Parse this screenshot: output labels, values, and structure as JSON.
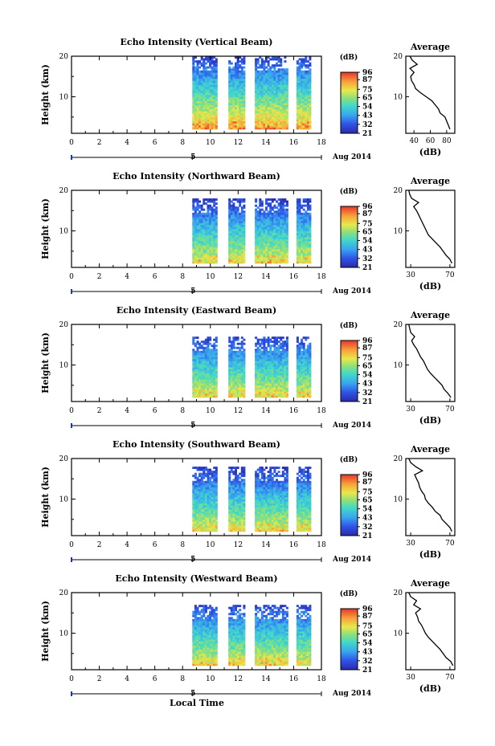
{
  "figure": {
    "xlabel": "Local Time",
    "colorbar_unit": "(dB)",
    "date_label": "Aug 2014",
    "day_tick": "5",
    "ylabel": "Height (km)",
    "avg_title": "Average",
    "avg_xlabel": "(dB)"
  },
  "chart_data": [
    {
      "type": "heatmap",
      "title": "Echo Intensity (Vertical Beam)",
      "xlabel": "Local Time",
      "ylabel": "Height (km)",
      "xlim": [
        0,
        18
      ],
      "ylim": [
        1,
        20
      ],
      "xticks": [
        "0",
        "2",
        "4",
        "6",
        "8",
        "10",
        "12",
        "14",
        "16",
        "18"
      ],
      "yticks": [
        "10",
        "20"
      ],
      "data_segments": [
        [
          8.7,
          10.5
        ],
        [
          11.3,
          12.5
        ],
        [
          13.2,
          15.5
        ],
        [
          16.2,
          17.2
        ]
      ],
      "top_height": 20,
      "colorbar": {
        "unit": "(dB)",
        "ticks": [
          "96",
          "87",
          "75",
          "65",
          "54",
          "43",
          "32",
          "21"
        ],
        "range": [
          21,
          96
        ]
      },
      "average_profile": {
        "title": "Average",
        "xlabel": "(dB)",
        "xticks": [
          "40",
          "60",
          "80"
        ],
        "xlim": [
          30,
          90
        ],
        "height": [
          2,
          3,
          4,
          5,
          6,
          7,
          8,
          9,
          10,
          11,
          12,
          13,
          14,
          15,
          16,
          17,
          18,
          19,
          20
        ],
        "value": [
          84,
          82,
          80,
          78,
          72,
          70,
          66,
          62,
          55,
          48,
          42,
          40,
          37,
          36,
          40,
          35,
          44,
          38,
          35
        ]
      }
    },
    {
      "type": "heatmap",
      "title": "Echo Intensity (Northward Beam)",
      "xlabel": "Local Time",
      "ylabel": "Height (km)",
      "xlim": [
        0,
        18
      ],
      "ylim": [
        1,
        20
      ],
      "xticks": [
        "0",
        "2",
        "4",
        "6",
        "8",
        "10",
        "12",
        "14",
        "16",
        "18"
      ],
      "yticks": [
        "10",
        "20"
      ],
      "data_segments": [
        [
          8.7,
          10.5
        ],
        [
          11.3,
          12.5
        ],
        [
          13.2,
          15.5
        ],
        [
          16.2,
          17.2
        ]
      ],
      "top_height": 18,
      "colorbar": {
        "unit": "(dB)",
        "ticks": [
          "96",
          "87",
          "75",
          "65",
          "54",
          "43",
          "32",
          "21"
        ],
        "range": [
          21,
          96
        ]
      },
      "average_profile": {
        "title": "Average",
        "xlabel": "(dB)",
        "xticks": [
          "30",
          "70"
        ],
        "xlim": [
          25,
          75
        ],
        "height": [
          2,
          3,
          4,
          5,
          6,
          7,
          8,
          9,
          10,
          11,
          12,
          13,
          14,
          15,
          16,
          17,
          18,
          19,
          20
        ],
        "value": [
          72,
          70,
          66,
          63,
          60,
          56,
          52,
          48,
          46,
          44,
          42,
          40,
          38,
          36,
          33,
          38,
          31,
          29,
          28
        ]
      }
    },
    {
      "type": "heatmap",
      "title": "Echo Intensity (Eastward Beam)",
      "xlabel": "Local Time",
      "ylabel": "Height (km)",
      "xlim": [
        0,
        18
      ],
      "ylim": [
        1,
        20
      ],
      "xticks": [
        "0",
        "2",
        "4",
        "6",
        "8",
        "10",
        "12",
        "14",
        "16",
        "18"
      ],
      "yticks": [
        "10",
        "20"
      ],
      "data_segments": [
        [
          8.7,
          10.5
        ],
        [
          11.3,
          12.5
        ],
        [
          13.2,
          15.5
        ],
        [
          16.2,
          17.2
        ]
      ],
      "top_height": 17,
      "colorbar": {
        "unit": "(dB)",
        "ticks": [
          "96",
          "87",
          "75",
          "65",
          "54",
          "43",
          "32",
          "21"
        ],
        "range": [
          21,
          96
        ]
      },
      "average_profile": {
        "title": "Average",
        "xlabel": "(dB)",
        "xticks": [
          "30",
          "70"
        ],
        "xlim": [
          25,
          75
        ],
        "height": [
          2,
          3,
          4,
          5,
          6,
          7,
          8,
          9,
          10,
          11,
          12,
          13,
          14,
          15,
          16,
          17,
          18,
          19,
          20
        ],
        "value": [
          71,
          68,
          64,
          62,
          58,
          54,
          50,
          47,
          45,
          43,
          40,
          38,
          36,
          33,
          31,
          34,
          30,
          29,
          28
        ]
      }
    },
    {
      "type": "heatmap",
      "title": "Echo Intensity (Southward Beam)",
      "xlabel": "Local Time",
      "ylabel": "Height (km)",
      "xlim": [
        0,
        18
      ],
      "ylim": [
        1,
        20
      ],
      "xticks": [
        "0",
        "2",
        "4",
        "6",
        "8",
        "10",
        "12",
        "14",
        "16",
        "18"
      ],
      "yticks": [
        "10",
        "20"
      ],
      "data_segments": [
        [
          8.7,
          10.5
        ],
        [
          11.3,
          12.5
        ],
        [
          13.2,
          15.5
        ],
        [
          16.2,
          17.2
        ]
      ],
      "top_height": 18,
      "colorbar": {
        "unit": "(dB)",
        "ticks": [
          "96",
          "87",
          "75",
          "65",
          "54",
          "43",
          "32",
          "21"
        ],
        "range": [
          21,
          96
        ]
      },
      "average_profile": {
        "title": "Average",
        "xlabel": "(dB)",
        "xticks": [
          "30",
          "70"
        ],
        "xlim": [
          25,
          75
        ],
        "height": [
          2,
          3,
          4,
          5,
          6,
          7,
          8,
          9,
          10,
          11,
          12,
          13,
          14,
          15,
          16,
          17,
          18,
          19,
          20
        ],
        "value": [
          72,
          70,
          66,
          62,
          60,
          55,
          52,
          48,
          45,
          44,
          41,
          39,
          38,
          36,
          34,
          42,
          35,
          30,
          28
        ]
      }
    },
    {
      "type": "heatmap",
      "title": "Echo Intensity (Westward Beam)",
      "xlabel": "Local Time",
      "ylabel": "Height (km)",
      "xlim": [
        0,
        18
      ],
      "ylim": [
        1,
        20
      ],
      "xticks": [
        "0",
        "2",
        "4",
        "6",
        "8",
        "10",
        "12",
        "14",
        "16",
        "18"
      ],
      "yticks": [
        "10",
        "20"
      ],
      "data_segments": [
        [
          8.7,
          10.5
        ],
        [
          11.3,
          12.5
        ],
        [
          13.2,
          15.5
        ],
        [
          16.2,
          17.2
        ]
      ],
      "top_height": 17,
      "colorbar": {
        "unit": "(dB)",
        "ticks": [
          "96",
          "87",
          "75",
          "65",
          "54",
          "43",
          "32",
          "21"
        ],
        "range": [
          21,
          96
        ]
      },
      "average_profile": {
        "title": "Average",
        "xlabel": "(dB)",
        "xticks": [
          "30",
          "70"
        ],
        "xlim": [
          25,
          75
        ],
        "height": [
          2,
          3,
          4,
          5,
          6,
          7,
          8,
          9,
          10,
          11,
          12,
          13,
          14,
          15,
          16,
          17,
          18,
          19,
          20
        ],
        "value": [
          73,
          71,
          66,
          63,
          60,
          56,
          52,
          48,
          45,
          43,
          41,
          38,
          37,
          35,
          40,
          33,
          36,
          30,
          28
        ]
      }
    }
  ]
}
